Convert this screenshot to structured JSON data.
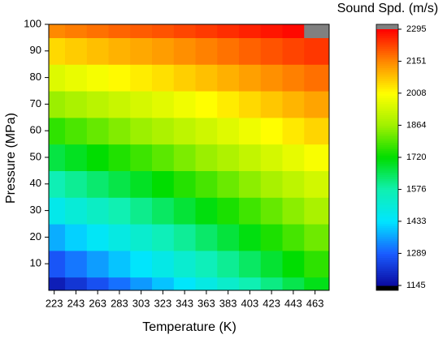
{
  "chart_data": {
    "type": "heatmap",
    "xlabel": "Temperature (K)",
    "ylabel": "Pressure (MPa)",
    "colorbar_label": "Sound Spd. (m/s)",
    "x": [
      223,
      243,
      263,
      283,
      303,
      323,
      343,
      363,
      383,
      403,
      423,
      443,
      463
    ],
    "y": [
      0,
      10,
      20,
      30,
      40,
      50,
      60,
      70,
      80,
      90,
      100
    ],
    "z": [
      [
        1180,
        1223,
        1267,
        1310,
        1353,
        1397,
        1440,
        1483,
        1527,
        1570,
        1613,
        1657,
        1700
      ],
      [
        1277,
        1317,
        1357,
        1398,
        1438,
        1478,
        1518,
        1558,
        1599,
        1639,
        1679,
        1719,
        1760
      ],
      [
        1374,
        1411,
        1448,
        1485,
        1522,
        1559,
        1597,
        1634,
        1671,
        1708,
        1745,
        1782,
        1819
      ],
      [
        1471,
        1505,
        1539,
        1573,
        1606,
        1640,
        1675,
        1709,
        1743,
        1777,
        1811,
        1845,
        1879
      ],
      [
        1568,
        1599,
        1630,
        1661,
        1691,
        1721,
        1753,
        1784,
        1815,
        1846,
        1877,
        1908,
        1938
      ],
      [
        1665,
        1693,
        1721,
        1749,
        1775,
        1802,
        1831,
        1859,
        1887,
        1915,
        1943,
        1971,
        1998
      ],
      [
        1762,
        1787,
        1812,
        1837,
        1860,
        1883,
        1909,
        1934,
        1959,
        1984,
        2009,
        2034,
        2058
      ],
      [
        1859,
        1881,
        1903,
        1925,
        1944,
        1964,
        1987,
        2009,
        2031,
        2053,
        2075,
        2097,
        2118
      ],
      [
        1956,
        1975,
        1994,
        2013,
        2029,
        2045,
        2065,
        2084,
        2103,
        2122,
        2141,
        2160,
        2177
      ],
      [
        2053,
        2069,
        2085,
        2101,
        2113,
        2126,
        2143,
        2159,
        2175,
        2191,
        2207,
        2223,
        2237
      ],
      [
        2150,
        2163,
        2176,
        2189,
        2198,
        2207,
        2221,
        2234,
        2247,
        2260,
        2273,
        2285,
        2297
      ]
    ],
    "xlim": [
      218,
      476
    ],
    "ylim": [
      0,
      100
    ],
    "xticks": [
      223,
      243,
      263,
      283,
      303,
      323,
      343,
      363,
      383,
      403,
      423,
      443,
      463
    ],
    "yticks": [
      10,
      20,
      30,
      40,
      50,
      60,
      70,
      80,
      90,
      100
    ],
    "zlim": [
      1145,
      2295
    ],
    "zticks": [
      1145,
      1289,
      1433,
      1576,
      1720,
      1864,
      2008,
      2151,
      2295
    ],
    "colorscale": [
      "#0a0aa0",
      "#1a5cff",
      "#00e5ff",
      "#10f0b0",
      "#00dd00",
      "#a0f000",
      "#ffff00",
      "#ff8800",
      "#ff0000"
    ],
    "over_color": "#808080",
    "under_color": "#000000"
  }
}
